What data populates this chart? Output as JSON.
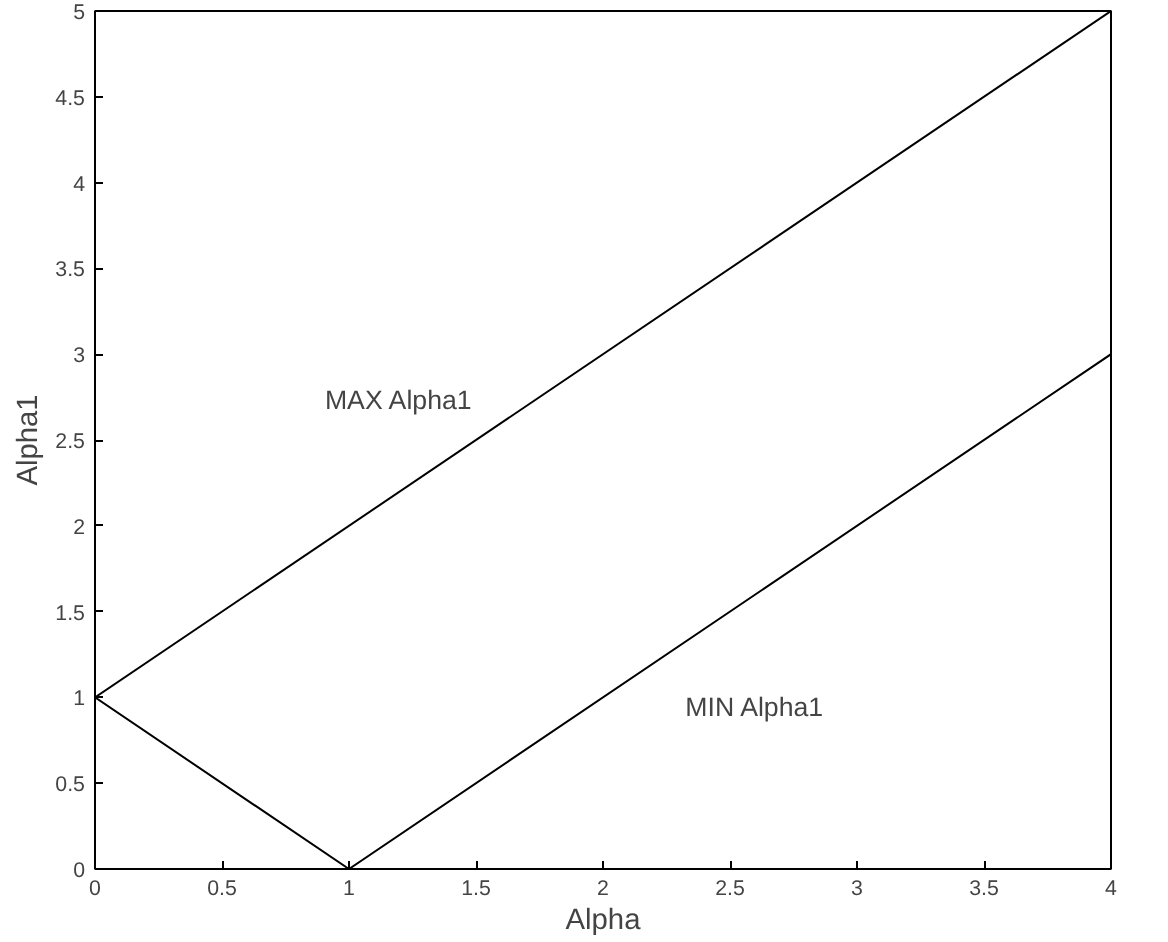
{
  "chart_data": {
    "type": "line",
    "xlabel": "Alpha",
    "ylabel": "Alpha1",
    "xlim": [
      0,
      4
    ],
    "ylim": [
      0,
      5
    ],
    "xticks": [
      0,
      0.5,
      1,
      1.5,
      2,
      2.5,
      3,
      3.5,
      4
    ],
    "yticks": [
      0,
      0.5,
      1,
      1.5,
      2,
      2.5,
      3,
      3.5,
      4,
      4.5,
      5
    ],
    "grid": false,
    "legend": false,
    "marker": "none",
    "line_style": "solid",
    "series": [
      {
        "name": "MAX Alpha1",
        "color": "#000000",
        "x": [
          0,
          4
        ],
        "values": [
          1,
          5
        ]
      },
      {
        "name": "MIN Alpha1",
        "color": "#000000",
        "x": [
          0,
          1,
          4
        ],
        "values": [
          1,
          0,
          3
        ]
      }
    ]
  }
}
